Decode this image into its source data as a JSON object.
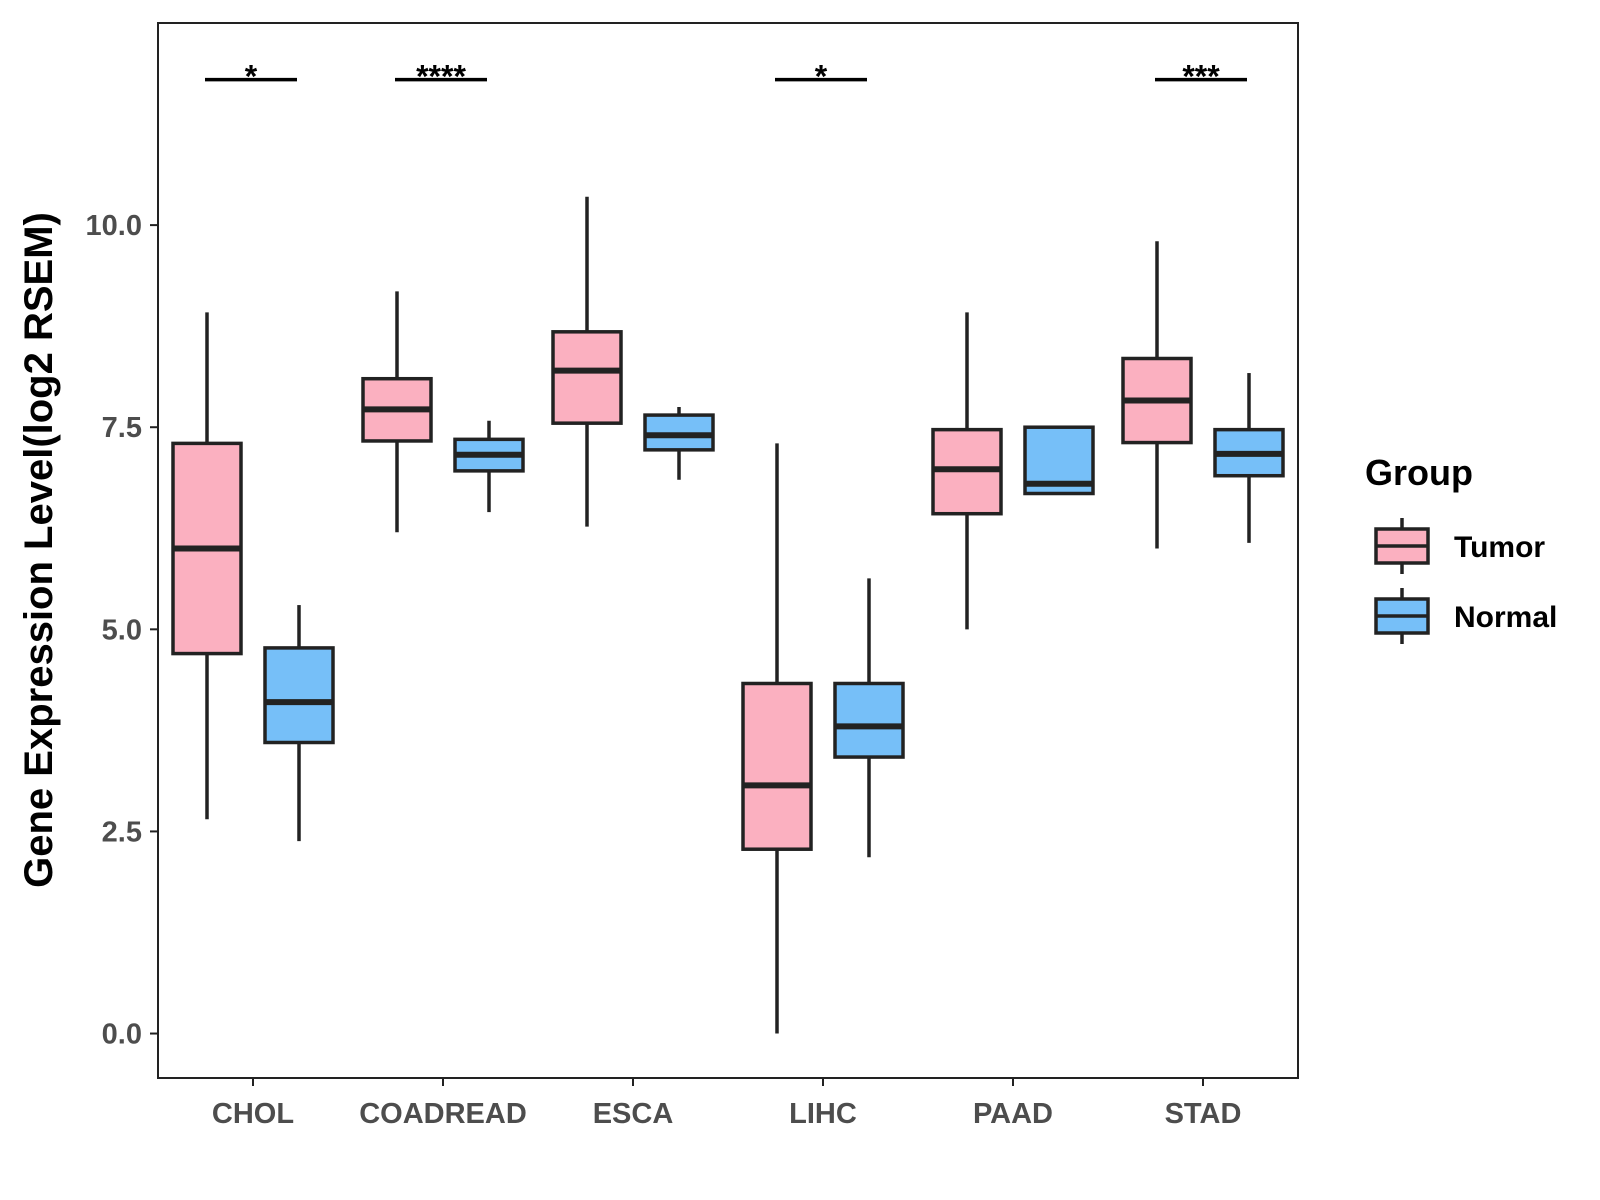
{
  "chart_data": {
    "type": "boxplot",
    "ylabel": "Gene Expression Level(log2 RSEM)",
    "xlabel": "",
    "ylim": [
      -0.55,
      12.5
    ],
    "yticks": [
      0.0,
      2.5,
      5.0,
      7.5,
      10.0
    ],
    "ytick_labels": [
      "0.0",
      "2.5",
      "5.0",
      "7.5",
      "10.0"
    ],
    "categories": [
      "CHOL",
      "COADREAD",
      "ESCA",
      "LIHC",
      "PAAD",
      "STAD"
    ],
    "legend": {
      "title": "Group",
      "position": "right",
      "entries": [
        {
          "name": "Tumor",
          "color": "#FBB0C0"
        },
        {
          "name": "Normal",
          "color": "#76BFF8"
        }
      ]
    },
    "series": [
      {
        "name": "Tumor",
        "color": "#FBB0C0",
        "boxes": [
          {
            "category": "CHOL",
            "min": 2.65,
            "q1": 4.7,
            "median": 6.0,
            "q3": 7.3,
            "max": 8.92
          },
          {
            "category": "COADREAD",
            "min": 6.2,
            "q1": 7.33,
            "median": 7.72,
            "q3": 8.1,
            "max": 9.18
          },
          {
            "category": "ESCA",
            "min": 6.27,
            "q1": 7.55,
            "median": 8.2,
            "q3": 8.68,
            "max": 10.35
          },
          {
            "category": "LIHC",
            "min": 0.0,
            "q1": 2.28,
            "median": 3.07,
            "q3": 4.33,
            "max": 7.3
          },
          {
            "category": "PAAD",
            "min": 5.0,
            "q1": 6.43,
            "median": 6.98,
            "q3": 7.47,
            "max": 8.92
          },
          {
            "category": "STAD",
            "min": 6.0,
            "q1": 7.31,
            "median": 7.83,
            "q3": 8.35,
            "max": 9.8
          }
        ]
      },
      {
        "name": "Normal",
        "color": "#76BFF8",
        "boxes": [
          {
            "category": "CHOL",
            "min": 2.38,
            "q1": 3.6,
            "median": 4.1,
            "q3": 4.77,
            "max": 5.3
          },
          {
            "category": "COADREAD",
            "min": 6.45,
            "q1": 6.96,
            "median": 7.16,
            "q3": 7.35,
            "max": 7.58
          },
          {
            "category": "ESCA",
            "min": 6.85,
            "q1": 7.22,
            "median": 7.4,
            "q3": 7.65,
            "max": 7.75
          },
          {
            "category": "LIHC",
            "min": 2.18,
            "q1": 3.42,
            "median": 3.8,
            "q3": 4.33,
            "max": 5.63
          },
          {
            "category": "PAAD",
            "min": 6.68,
            "q1": 6.68,
            "median": 6.8,
            "q3": 7.5,
            "max": 7.5
          },
          {
            "category": "STAD",
            "min": 6.07,
            "q1": 6.9,
            "median": 7.17,
            "q3": 7.47,
            "max": 8.17
          }
        ]
      }
    ],
    "annotations": [
      {
        "category": "CHOL",
        "label": "*",
        "y": 11.8
      },
      {
        "category": "COADREAD",
        "label": "****",
        "y": 11.8
      },
      {
        "category": "LIHC",
        "label": "*",
        "y": 11.8
      },
      {
        "category": "STAD",
        "label": "***",
        "y": 11.8
      }
    ]
  }
}
